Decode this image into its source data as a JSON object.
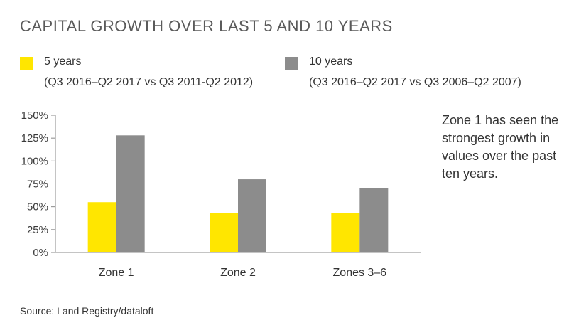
{
  "title": "CAPITAL GROWTH OVER LAST 5 AND 10 YEARS",
  "legend": [
    {
      "name": "5 years",
      "detail": "(Q3 2016–Q2 2017 vs Q3 2011-Q2 2012)",
      "color": "#ffe600"
    },
    {
      "name": "10 years",
      "detail": "(Q3 2016–Q2 2017 vs Q3 2006–Q2 2007)",
      "color": "#8c8c8c"
    }
  ],
  "note": "Zone 1 has seen the strongest growth in values over the past ten years.",
  "source": "Source: Land Registry/dataloft",
  "chart_data": {
    "type": "bar",
    "title": "CAPITAL GROWTH OVER LAST 5 AND 10 YEARS",
    "categories": [
      "Zone 1",
      "Zone 2",
      "Zones 3–6"
    ],
    "series": [
      {
        "name": "5 years",
        "values": [
          55,
          43,
          43
        ],
        "color": "#ffe600"
      },
      {
        "name": "10 years",
        "values": [
          128,
          80,
          70
        ],
        "color": "#8c8c8c"
      }
    ],
    "ylim": [
      0,
      150
    ],
    "yticks": [
      0,
      25,
      50,
      75,
      100,
      125,
      150
    ],
    "ytick_labels": [
      "0%",
      "25%",
      "50%",
      "75%",
      "100%",
      "125%",
      "150%"
    ],
    "grid": false,
    "legend_position": "top"
  }
}
